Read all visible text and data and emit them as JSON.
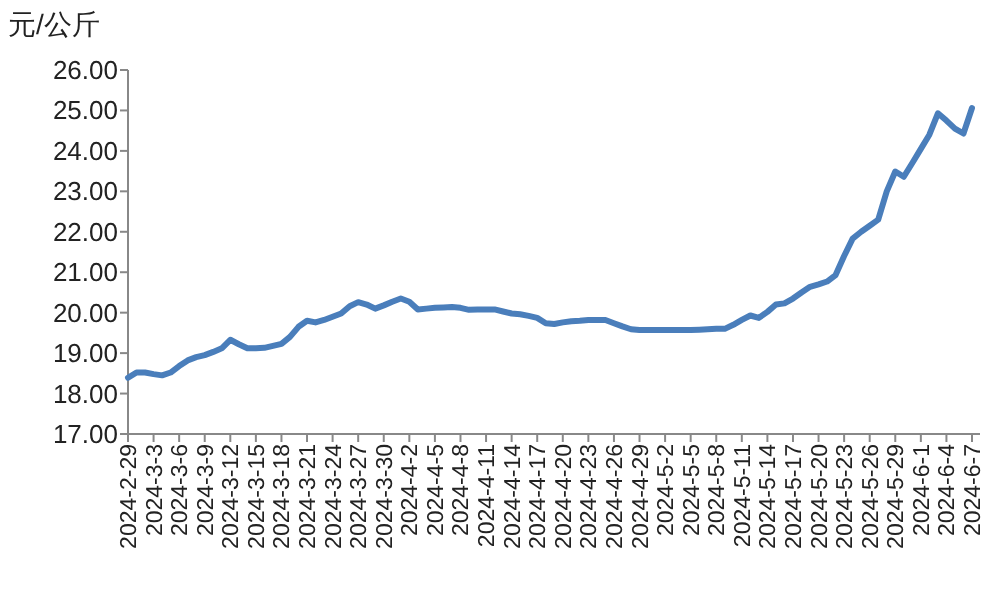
{
  "chart_data": {
    "type": "line",
    "ylabel": "元/公斤",
    "categories": [
      "2024-2-29",
      null,
      null,
      "2024-3-3",
      null,
      null,
      "2024-3-6",
      null,
      null,
      "2024-3-9",
      null,
      null,
      "2024-3-12",
      null,
      null,
      "2024-3-15",
      null,
      null,
      "2024-3-18",
      null,
      null,
      "2024-3-21",
      null,
      null,
      "2024-3-24",
      null,
      null,
      "2024-3-27",
      null,
      null,
      "2024-3-30",
      null,
      null,
      "2024-4-2",
      null,
      null,
      "2024-4-5",
      null,
      null,
      "2024-4-8",
      null,
      null,
      "2024-4-11",
      null,
      null,
      "2024-4-14",
      null,
      null,
      "2024-4-17",
      null,
      null,
      "2024-4-20",
      null,
      null,
      "2024-4-23",
      null,
      null,
      "2024-4-26",
      null,
      null,
      "2024-4-29",
      null,
      null,
      "2024-5-2",
      null,
      null,
      "2024-5-5",
      null,
      null,
      "2024-5-8",
      null,
      null,
      "2024-5-11",
      null,
      null,
      "2024-5-14",
      null,
      null,
      "2024-5-17",
      null,
      null,
      "2024-5-20",
      null,
      null,
      "2024-5-23",
      null,
      null,
      "2024-5-26",
      null,
      null,
      "2024-5-29",
      null,
      null,
      "2024-6-1",
      null,
      null,
      "2024-6-4",
      null,
      null,
      "2024-6-7"
    ],
    "series": [
      {
        "color": "#4a7ebb",
        "values": [
          18.39,
          18.52,
          18.52,
          18.48,
          18.45,
          18.52,
          18.68,
          18.82,
          18.9,
          18.95,
          19.03,
          19.12,
          19.33,
          19.22,
          19.12,
          19.12,
          19.13,
          19.18,
          19.23,
          19.4,
          19.65,
          19.8,
          19.76,
          19.82,
          19.9,
          19.98,
          20.16,
          20.26,
          20.2,
          20.1,
          20.18,
          20.27,
          20.35,
          20.27,
          20.08,
          20.1,
          20.12,
          20.13,
          20.14,
          20.12,
          20.07,
          20.08,
          20.08,
          20.08,
          20.03,
          19.98,
          19.96,
          19.92,
          19.87,
          19.74,
          19.72,
          19.76,
          19.79,
          19.8,
          19.82,
          19.82,
          19.82,
          19.74,
          19.66,
          19.59,
          19.57,
          19.57,
          19.57,
          19.57,
          19.57,
          19.57,
          19.57,
          19.58,
          19.59,
          19.6,
          19.6,
          19.7,
          19.82,
          19.93,
          19.87,
          20.02,
          20.2,
          20.23,
          20.35,
          20.5,
          20.64,
          20.7,
          20.77,
          20.93,
          21.4,
          21.83,
          22.0,
          22.15,
          22.3,
          23.0,
          23.49,
          23.36,
          23.7,
          24.05,
          24.4,
          24.93,
          24.75,
          24.55,
          24.43,
          25.06
        ]
      }
    ],
    "ylim": [
      17,
      26
    ],
    "yticks": [
      {
        "value": 17,
        "label": "17.00"
      },
      {
        "value": 18,
        "label": "18.00"
      },
      {
        "value": 19,
        "label": "19.00"
      },
      {
        "value": 20,
        "label": "20.00"
      },
      {
        "value": 21,
        "label": "21.00"
      },
      {
        "value": 22,
        "label": "22.00"
      },
      {
        "value": 23,
        "label": "23.00"
      },
      {
        "value": 24,
        "label": "24.00"
      },
      {
        "value": 25,
        "label": "25.00"
      },
      {
        "value": 26,
        "label": "26.00"
      }
    ],
    "grid": false,
    "marker": "none",
    "line_style": "solid"
  }
}
